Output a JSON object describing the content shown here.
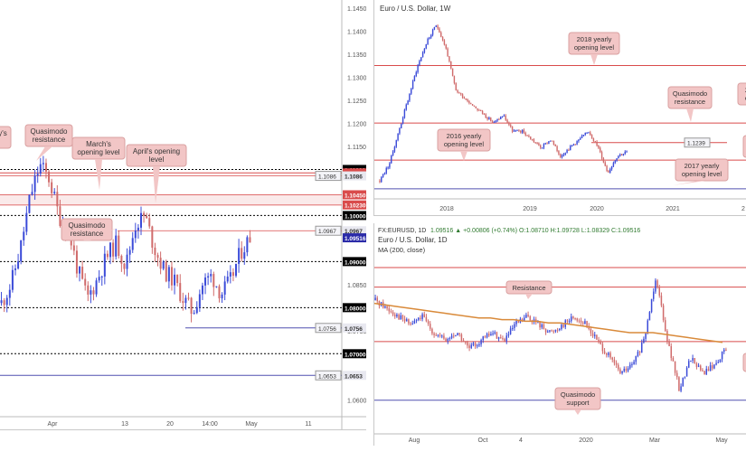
{
  "charts": {
    "left": {
      "title": "",
      "price_labels": [
        "1.14500",
        "1.14000",
        "1.13500",
        "1.13000",
        "1.12500",
        "1.12000",
        "1.11500",
        "1.11000",
        "1.10500",
        "1.10000",
        "1.09500",
        "1.09000",
        "1.08500",
        "1.08000",
        "1.07500",
        "1.07000",
        "1.06500",
        "1.06000"
      ],
      "date_labels": [
        "Apr",
        "13",
        "20",
        "14:00",
        "May",
        "11"
      ],
      "markers": [
        {
          "label": "1.11000",
          "color": "#000000",
          "text_color": "#ffffff"
        },
        {
          "label": "1.10925",
          "color": "#d94b4b",
          "text_color": "#ffffff"
        },
        {
          "label": "1.1086",
          "color": "#e8e8f0",
          "text_color": "#333333"
        },
        {
          "label": "1.10450",
          "color": "#d94b4b",
          "text_color": "#ffffff"
        },
        {
          "label": "1.10230",
          "color": "#d94b4b",
          "text_color": "#ffffff"
        },
        {
          "label": "1.10000",
          "color": "#000000",
          "text_color": "#ffffff"
        },
        {
          "label": "1.0967",
          "color": "#e8e8f0",
          "text_color": "#333333"
        },
        {
          "label": "1.09516",
          "color": "#2a2aa8",
          "text_color": "#ffffff"
        },
        {
          "label": "1.09000",
          "color": "#000000",
          "text_color": "#ffffff"
        },
        {
          "label": "1.08000",
          "color": "#000000",
          "text_color": "#ffffff"
        },
        {
          "label": "1.0756",
          "color": "#e8e8f0",
          "text_color": "#333333"
        },
        {
          "label": "1.07000",
          "color": "#000000",
          "text_color": "#ffffff"
        },
        {
          "label": "1.0653",
          "color": "#e8e8f0",
          "text_color": "#333333"
        }
      ],
      "annotations": [
        "y's",
        "Quasimodo\nresistance",
        "March's\nopening level",
        "April's opening\nlevel",
        "Quasimodo\nresistance"
      ]
    },
    "top_right": {
      "title": "Euro / U.S. Dollar, 1W",
      "date_labels": [
        "2018",
        "2019",
        "2020",
        "2021",
        "2"
      ],
      "annotations": [
        "2018 yearly\nopening level",
        "Quasimodo\nresistance",
        "2016 yearly\nopening level",
        "2017 yearly\nopening level",
        "2\no"
      ],
      "value_label": "1.1239"
    },
    "bottom_right": {
      "title": "Euro / U.S. Dollar, 1D",
      "ohlc_prefix": "FX:EURUSD, 1D",
      "ohlc": "1.09516 ▲ +0.00806 (+0.74%) O:1.08710 H:1.09728 L:1.08329 C:1.09516",
      "ma_label": "MA (200, close)",
      "date_labels": [
        "Aug",
        "Oct",
        "4",
        "2020",
        "Mar",
        "May"
      ],
      "annotations": [
        "Resistance",
        "Quasimodo\nsupport"
      ]
    }
  },
  "chart_data": [
    {
      "type": "line",
      "name": "EURUSD 4H",
      "title": "",
      "ylim": [
        1.0575,
        1.146
      ],
      "x_ticks": [
        "Apr",
        "13",
        "20",
        "14:00",
        "May",
        "11"
      ],
      "series": [
        {
          "name": "",
          "values": [
            1.081,
            1.085,
            1.093,
            1.104,
            1.111,
            1.108,
            1.1,
            1.097,
            1.088,
            1.082,
            1.086,
            1.091,
            1.094,
            1.089,
            1.098,
            1.1,
            1.093,
            1.088,
            1.086,
            1.082,
            1.079,
            1.085,
            1.087,
            1.083,
            1.086,
            1.092,
            1.0952
          ]
        }
      ],
      "levels": [
        1.11,
        1.10925,
        1.1086,
        1.1045,
        1.1023,
        1.1,
        1.0967,
        1.09,
        1.08,
        1.0756,
        1.07,
        1.0653
      ]
    },
    {
      "type": "line",
      "name": "EURUSD 1W",
      "title": "Euro / U.S. Dollar, 1W",
      "x_ticks": [
        "2018",
        "2019",
        "2020",
        "2021"
      ],
      "series": [
        {
          "name": "",
          "values": [
            1.06,
            1.08,
            1.12,
            1.16,
            1.2,
            1.23,
            1.25,
            1.22,
            1.17,
            1.16,
            1.15,
            1.14,
            1.13,
            1.14,
            1.12,
            1.12,
            1.11,
            1.1,
            1.11,
            1.09,
            1.1,
            1.11,
            1.12,
            1.1,
            1.07,
            1.09,
            1.095
          ]
        }
      ],
      "levels": [
        1.2,
        1.1239,
        1.13,
        1.05
      ]
    },
    {
      "type": "line",
      "name": "EURUSD 1D",
      "title": "Euro / U.S. Dollar, 1D",
      "x_ticks": [
        "Aug",
        "Oct",
        "4",
        "2020",
        "Mar",
        "May"
      ],
      "series": [
        {
          "name": "",
          "values": [
            1.125,
            1.12,
            1.115,
            1.11,
            1.115,
            1.105,
            1.1,
            1.105,
            1.095,
            1.1,
            1.105,
            1.1,
            1.11,
            1.115,
            1.11,
            1.105,
            1.11,
            1.115,
            1.11,
            1.1,
            1.09,
            1.08,
            1.085,
            1.1,
            1.14,
            1.1,
            1.07,
            1.09,
            1.08,
            1.085,
            1.095
          ]
        },
        {
          "name": "MA (200, close)",
          "values": [
            1.123,
            1.122,
            1.121,
            1.12,
            1.119,
            1.118,
            1.117,
            1.116,
            1.115,
            1.114,
            1.114,
            1.113,
            1.113,
            1.112,
            1.112,
            1.111,
            1.111,
            1.11,
            1.109,
            1.108,
            1.107,
            1.106,
            1.105,
            1.105,
            1.105,
            1.104,
            1.103,
            1.102,
            1.101,
            1.1,
            1.099
          ]
        }
      ],
      "levels": [
        1.145,
        1.133,
        1.098,
        1.06
      ]
    }
  ]
}
